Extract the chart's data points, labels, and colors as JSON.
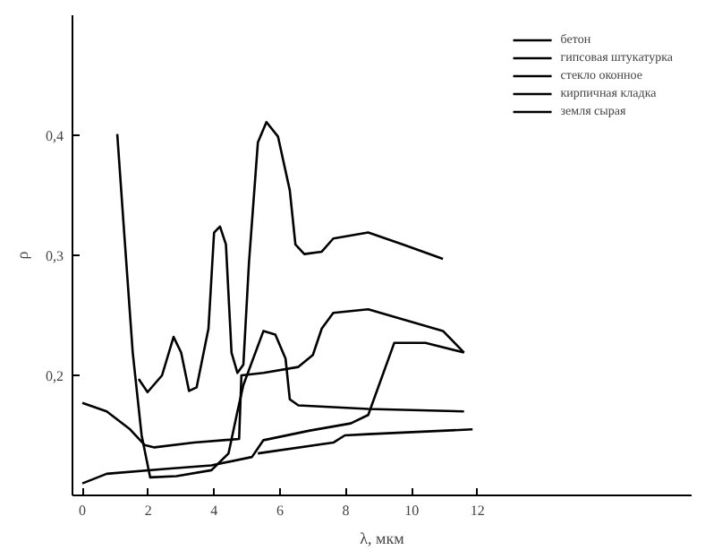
{
  "chart_data": {
    "type": "line",
    "xlabel": "λ, мкм",
    "ylabel": "ρ",
    "xlim": [
      -0.3,
      18.5
    ],
    "ylim": [
      0.1,
      0.5
    ],
    "xticks": [
      0,
      2,
      4,
      6,
      8,
      10,
      12
    ],
    "yticks": [
      {
        "value": 0.2,
        "label": "0,2"
      },
      {
        "value": 0.3,
        "label": "0,3"
      },
      {
        "value": 0.4,
        "label": "0,4"
      }
    ],
    "grid": false,
    "legend": "top right",
    "marker": "none",
    "line_style": "solid",
    "series": [
      {
        "name": "бетон",
        "color": "#000000",
        "x": [
          1.71,
          1.98,
          2.42,
          2.77,
          3.0,
          3.24,
          3.47,
          3.83,
          4.0,
          4.18,
          4.36,
          4.53,
          4.71,
          4.89,
          5.06,
          5.33,
          5.59,
          5.94,
          6.3,
          6.47,
          6.74,
          7.27,
          7.62,
          8.68,
          9.74,
          10.95
        ],
        "values": [
          0.197,
          0.186,
          0.2,
          0.232,
          0.219,
          0.187,
          0.19,
          0.239,
          0.319,
          0.324,
          0.309,
          0.219,
          0.202,
          0.209,
          0.294,
          0.394,
          0.411,
          0.399,
          0.354,
          0.309,
          0.301,
          0.303,
          0.314,
          0.319,
          0.309,
          0.297
        ]
      },
      {
        "name": "гипсовая штукатурка",
        "color": "#000000",
        "x": [
          1.06,
          1.27,
          1.53,
          1.8,
          2.06,
          2.86,
          3.92,
          4.44,
          4.71,
          4.89,
          5.5,
          5.86,
          6.17,
          6.3,
          6.56,
          8.68,
          11.59
        ],
        "values": [
          0.401,
          0.319,
          0.219,
          0.15,
          0.115,
          0.116,
          0.121,
          0.135,
          0.17,
          0.192,
          0.237,
          0.234,
          0.214,
          0.18,
          0.175,
          0.172,
          0.17
        ]
      },
      {
        "name": "стекло оконное",
        "color": "#000000",
        "x": [
          0,
          0.74,
          1.45,
          1.89,
          2.19,
          3.39,
          4.76,
          4.83,
          5.5,
          6.56,
          7.0,
          7.27,
          7.62,
          8.68,
          10.95,
          11.59
        ],
        "values": [
          0.177,
          0.17,
          0.155,
          0.142,
          0.14,
          0.144,
          0.147,
          0.2,
          0.202,
          0.207,
          0.217,
          0.239,
          0.252,
          0.255,
          0.237,
          0.219
        ]
      },
      {
        "name": "кирпичная кладка",
        "color": "#000000",
        "x": [
          0,
          0.74,
          2.5,
          3.92,
          5.15,
          5.5,
          6.91,
          8.15,
          8.68,
          9.47,
          10.42,
          11.59
        ],
        "values": [
          0.11,
          0.118,
          0.122,
          0.125,
          0.132,
          0.146,
          0.154,
          0.16,
          0.167,
          0.227,
          0.227,
          0.219
        ]
      },
      {
        "name": "земля сырая",
        "color": "#000000",
        "x": [
          5.33,
          7.62,
          7.97,
          8.68,
          11.85
        ],
        "values": [
          0.135,
          0.144,
          0.15,
          0.151,
          0.155
        ]
      }
    ]
  }
}
